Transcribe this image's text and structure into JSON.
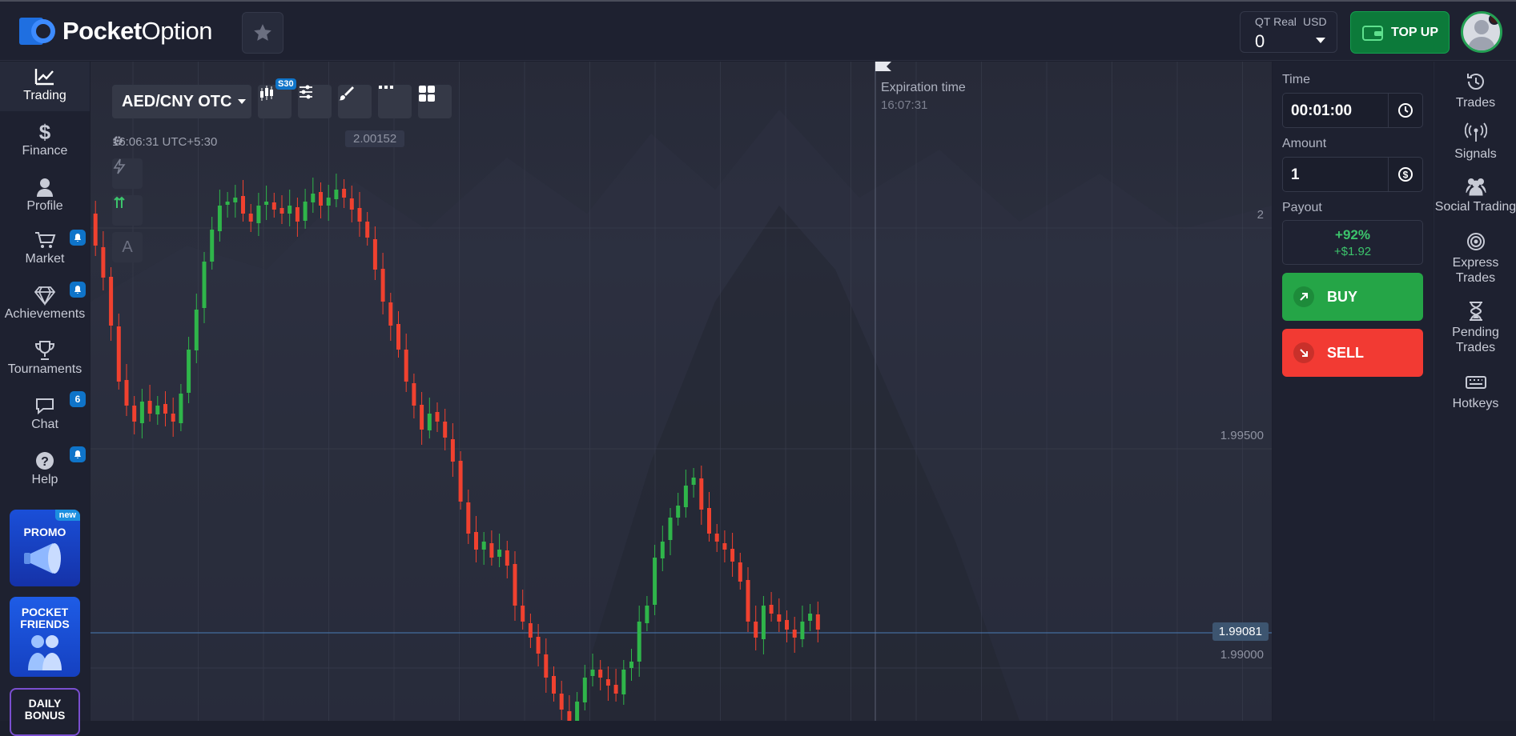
{
  "header": {
    "brand_bold": "Pocket",
    "brand_light": "Option",
    "account_type": "QT Real",
    "account_currency": "USD",
    "balance": "0",
    "topup_label": "TOP UP"
  },
  "leftnav": {
    "items": [
      {
        "label": "Trading",
        "icon": "trading-chart-icon"
      },
      {
        "label": "Finance",
        "icon": "dollar-icon"
      },
      {
        "label": "Profile",
        "icon": "user-icon"
      },
      {
        "label": "Market",
        "icon": "cart-icon",
        "badge": "bell"
      },
      {
        "label": "Achievements",
        "icon": "diamond-icon",
        "badge": "bell"
      },
      {
        "label": "Tournaments",
        "icon": "trophy-icon"
      },
      {
        "label": "Chat",
        "icon": "chat-icon",
        "badge": "6"
      },
      {
        "label": "Help",
        "icon": "help-icon",
        "badge": "bell"
      }
    ],
    "promo_label": "PROMO",
    "promo_new": "new",
    "friends_label_1": "POCKET",
    "friends_label_2": "FRIENDS",
    "bonus_label_1": "DAILY",
    "bonus_label_2": "BONUS"
  },
  "chart": {
    "pair": "AED/CNY OTC",
    "timeframe_badge": "S30",
    "clock": "16:06:31 UTC+5:30",
    "price_marker_top": "2.00152",
    "expiration_label": "Expiration time",
    "expiration_time": "16:07:31",
    "y_ticks": [
      "2",
      "1.99500",
      "1.99000"
    ],
    "current_price": "1.99081",
    "mini_tool_letter": "A"
  },
  "chart_data": {
    "type": "candlestick",
    "title": "",
    "y_ticks": [
      2.0,
      1.995,
      1.99
    ],
    "current_price": 1.99081
  },
  "trade_panel": {
    "time_label": "Time",
    "time_value": "00:01:00",
    "amount_label": "Amount",
    "amount_value": "1",
    "payout_label": "Payout",
    "payout_pct": "+92%",
    "payout_amount": "+$1.92",
    "buy_label": "BUY",
    "sell_label": "SELL"
  },
  "rightnav": {
    "items": [
      {
        "label": "Trades",
        "icon": "history-icon"
      },
      {
        "label": "Signals",
        "icon": "signal-icon"
      },
      {
        "label": "Social Trading",
        "icon": "users-icon"
      },
      {
        "label": "Express Trades",
        "icon": "target-icon"
      },
      {
        "label": "Pending Trades",
        "icon": "hourglass-icon"
      },
      {
        "label": "Hotkeys",
        "icon": "keyboard-icon"
      }
    ]
  },
  "colors": {
    "up": "#2fb54a",
    "down": "#f0412f",
    "buy": "#25a547",
    "sell": "#f23a33",
    "accent": "#0f74c9"
  }
}
